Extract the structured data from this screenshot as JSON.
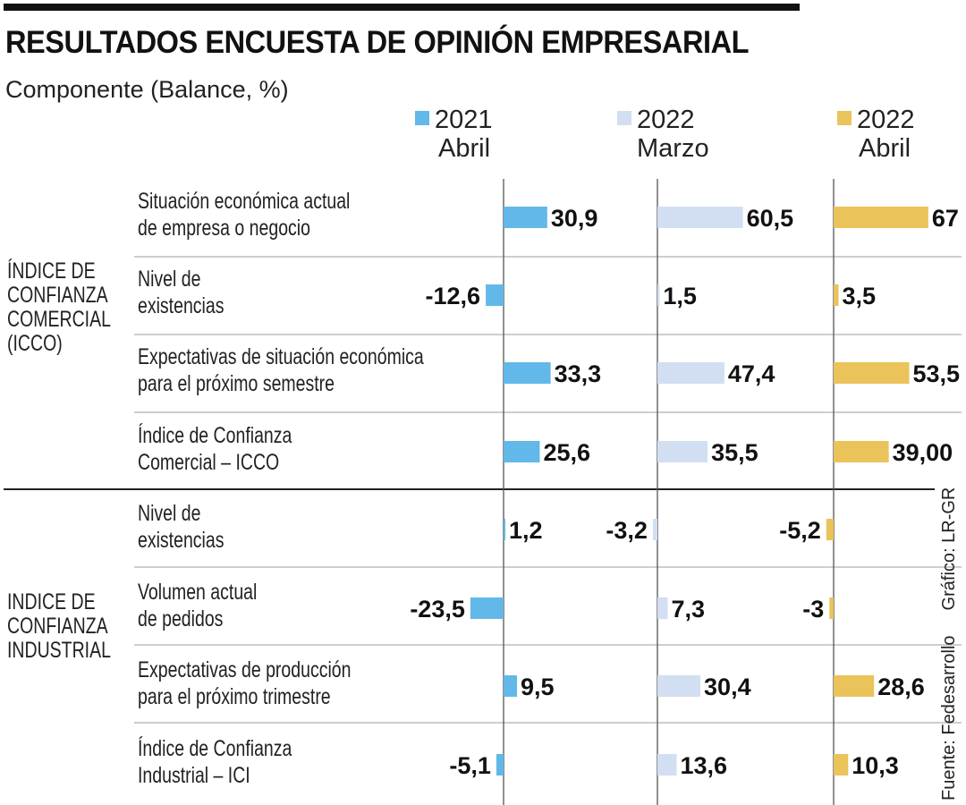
{
  "header": {
    "title": "RESULTADOS ENCUESTA DE OPINIÓN EMPRESARIAL",
    "subtitle": "Componente (Balance, %)"
  },
  "footer": {
    "source": "Fuente: Fedesarrollo",
    "credit": "Gráfico: LR-GR"
  },
  "colors": {
    "series_2021_abril": "#62b8e8",
    "series_2022_marzo": "#d2def2",
    "series_2022_abril": "#ebc35b"
  },
  "chart_data": {
    "type": "bar",
    "orientation": "horizontal",
    "title": "RESULTADOS ENCUESTA DE OPINIÓN EMPRESARIAL",
    "subtitle": "Componente (Balance, %)",
    "xlabel": "",
    "ylabel": "",
    "legend_position": "top",
    "grid": false,
    "series": [
      {
        "name": "2021 Abril",
        "line1": "2021",
        "line2": "Abril",
        "color": "#62b8e8",
        "values": [
          30.9,
          -12.6,
          33.3,
          25.6,
          1.2,
          -23.5,
          9.5,
          -5.1
        ],
        "labels": [
          "30,9",
          "-12,6",
          "33,3",
          "25,6",
          "1,2",
          "-23,5",
          "9,5",
          "-5,1"
        ]
      },
      {
        "name": "2022 Marzo",
        "line1": "2022",
        "line2": "Marzo",
        "color": "#d2def2",
        "values": [
          60.5,
          1.5,
          47.4,
          35.5,
          -3.2,
          7.3,
          30.4,
          13.6
        ],
        "labels": [
          "60,5",
          "1,5",
          "47,4",
          "35,5",
          "-3,2",
          "7,3",
          "30,4",
          "13,6"
        ]
      },
      {
        "name": "2022 Abril",
        "line1": "2022",
        "line2": "Abril",
        "color": "#ebc35b",
        "values": [
          67,
          3.5,
          53.5,
          39.0,
          -5.2,
          -3,
          28.6,
          10.3
        ],
        "labels": [
          "67",
          "3,5",
          "53,5",
          "39,00",
          "-5,2",
          "-3",
          "28,6",
          "10,3"
        ]
      }
    ],
    "groups": [
      {
        "label_lines": [
          "ÍNDICE DE",
          "CONFIANZA",
          "COMERCIAL",
          "(ICCO)"
        ],
        "rows": [
          [
            "Situación económica actual",
            "de empresa o negocio"
          ],
          [
            "Nivel de",
            "existencias"
          ],
          [
            "Expectativas de situación económica",
            "para el próximo semestre"
          ],
          [
            "Índice de Confianza",
            "Comercial – ICCO"
          ]
        ]
      },
      {
        "label_lines": [
          "INDICE DE",
          "CONFIANZA",
          "INDUSTRIAL"
        ],
        "rows": [
          [
            "Nivel de",
            "existencias"
          ],
          [
            "Volumen actual",
            "de pedidos"
          ],
          [
            "Expectativas de producción",
            "para el próximo trimestre"
          ],
          [
            "Índice de Confianza",
            "Industrial – ICI"
          ]
        ]
      }
    ]
  }
}
